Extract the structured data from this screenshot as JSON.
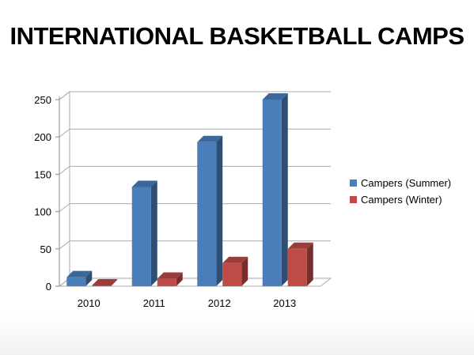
{
  "chart_data": {
    "type": "bar",
    "title": "INTERNATIONAL BASKETBALL CAMPS",
    "categories": [
      "2010",
      "2011",
      "2012",
      "2013"
    ],
    "series": [
      {
        "name": "Campers (Summer)",
        "values": [
          12,
          133,
          193,
          250
        ],
        "color": "#4a7ebb"
      },
      {
        "name": "Campers (Winter)",
        "values": [
          1,
          10,
          31,
          50
        ],
        "color": "#be4b48"
      }
    ],
    "ylim": [
      0,
      250
    ],
    "yticks": [
      "0",
      "50",
      "100",
      "150",
      "200",
      "250"
    ],
    "grid": true,
    "legend": "right",
    "style": "3d-column"
  }
}
